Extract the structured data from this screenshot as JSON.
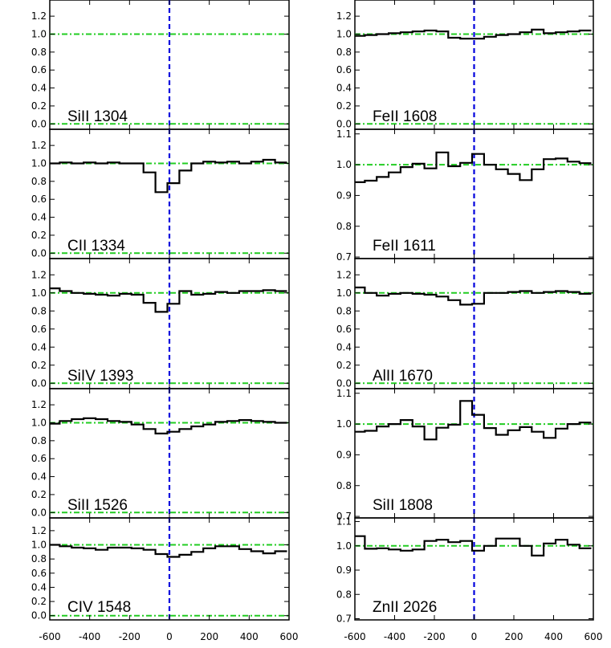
{
  "chart_data": {
    "type": "line",
    "title": "",
    "xlabel": "",
    "ylabel": "",
    "grid": false,
    "x_ticks": [
      -600,
      -400,
      -200,
      0,
      200,
      400,
      600
    ],
    "x_tick_labels_left": [
      "-600",
      "-400",
      "-200",
      "0",
      "200",
      "400",
      "600"
    ],
    "x_tick_labels_right": [
      "-600",
      "-400",
      "-200",
      "0",
      "200",
      "400",
      "600"
    ],
    "reference_lines": {
      "vertical_x": 0,
      "horizontal_y": [
        1.0,
        0.0
      ],
      "vertical_color": "#0000dd",
      "horizontal_color": "#22cc22"
    },
    "panels": [
      {
        "label": "SiII 1304",
        "column": "left",
        "row": 0,
        "xlim": [
          -600,
          600
        ],
        "ylim": [
          -0.06,
          1.38
        ],
        "yticks": [
          0.0,
          0.2,
          0.4,
          0.6,
          0.8,
          1.0,
          1.2
        ],
        "ytick_labels": [
          "0.0",
          "0.2",
          "0.4",
          "0.6",
          "0.8",
          "1.0",
          "1.2"
        ],
        "hlines": [
          1.0,
          0.0
        ],
        "x": [],
        "y": []
      },
      {
        "label": "CII 1334",
        "column": "left",
        "row": 1,
        "xlim": [
          -600,
          600
        ],
        "ylim": [
          -0.06,
          1.38
        ],
        "yticks": [
          0.0,
          0.2,
          0.4,
          0.6,
          0.8,
          1.0,
          1.2
        ],
        "ytick_labels": [
          "0.0",
          "0.2",
          "0.4",
          "0.6",
          "0.8",
          "1.0",
          "1.2"
        ],
        "hlines": [
          1.0,
          0.0
        ],
        "x": [
          -580,
          -520,
          -460,
          -400,
          -340,
          -280,
          -220,
          -160,
          -100,
          -40,
          20,
          80,
          140,
          200,
          260,
          320,
          380,
          440,
          500,
          560
        ],
        "y": [
          1.0,
          1.01,
          1.0,
          1.01,
          1.0,
          1.01,
          1.0,
          1.0,
          0.9,
          0.68,
          0.78,
          0.92,
          1.0,
          1.02,
          1.01,
          1.02,
          1.0,
          1.02,
          1.04,
          1.01
        ]
      },
      {
        "label": "SiIV 1393",
        "column": "left",
        "row": 2,
        "xlim": [
          -600,
          600
        ],
        "ylim": [
          -0.06,
          1.38
        ],
        "yticks": [
          0.0,
          0.2,
          0.4,
          0.6,
          0.8,
          1.0,
          1.2
        ],
        "ytick_labels": [
          "0.0",
          "0.2",
          "0.4",
          "0.6",
          "0.8",
          "1.0",
          "1.2"
        ],
        "hlines": [
          1.0,
          0.0
        ],
        "x": [
          -580,
          -520,
          -460,
          -400,
          -340,
          -280,
          -220,
          -160,
          -100,
          -40,
          20,
          80,
          140,
          200,
          260,
          320,
          380,
          440,
          500,
          560
        ],
        "y": [
          1.05,
          1.02,
          1.0,
          0.99,
          0.98,
          0.97,
          0.99,
          0.98,
          0.89,
          0.79,
          0.88,
          1.02,
          0.98,
          0.99,
          1.01,
          1.0,
          1.02,
          1.02,
          1.03,
          1.02
        ]
      },
      {
        "label": "SiII 1526",
        "column": "left",
        "row": 3,
        "xlim": [
          -600,
          600
        ],
        "ylim": [
          -0.06,
          1.38
        ],
        "yticks": [
          0.0,
          0.2,
          0.4,
          0.6,
          0.8,
          1.0,
          1.2
        ],
        "ytick_labels": [
          "0.0",
          "0.2",
          "0.4",
          "0.6",
          "0.8",
          "1.0",
          "1.2"
        ],
        "hlines": [
          1.0,
          0.0
        ],
        "x": [
          -580,
          -520,
          -460,
          -400,
          -340,
          -280,
          -220,
          -160,
          -100,
          -40,
          20,
          80,
          140,
          200,
          260,
          320,
          380,
          440,
          500,
          560
        ],
        "y": [
          0.99,
          1.02,
          1.04,
          1.05,
          1.04,
          1.02,
          1.01,
          0.98,
          0.93,
          0.88,
          0.9,
          0.93,
          0.96,
          0.98,
          1.01,
          1.02,
          1.03,
          1.02,
          1.01,
          1.0
        ]
      },
      {
        "label": "CIV 1548",
        "column": "left",
        "row": 4,
        "xlim": [
          -600,
          600
        ],
        "ylim": [
          -0.06,
          1.38
        ],
        "yticks": [
          0.0,
          0.2,
          0.4,
          0.6,
          0.8,
          1.0,
          1.2
        ],
        "ytick_labels": [
          "0.0",
          "0.2",
          "0.4",
          "0.6",
          "0.8",
          "1.0",
          "1.2"
        ],
        "hlines": [
          1.0,
          0.0
        ],
        "x": [
          -580,
          -520,
          -460,
          -400,
          -340,
          -280,
          -220,
          -160,
          -100,
          -40,
          20,
          80,
          140,
          200,
          260,
          320,
          380,
          440,
          500,
          560
        ],
        "y": [
          1.0,
          0.98,
          0.96,
          0.95,
          0.93,
          0.96,
          0.96,
          0.95,
          0.93,
          0.87,
          0.83,
          0.86,
          0.9,
          0.95,
          0.98,
          0.98,
          0.94,
          0.91,
          0.88,
          0.91
        ]
      },
      {
        "label": "FeII 1608",
        "column": "right",
        "row": 0,
        "xlim": [
          -600,
          600
        ],
        "ylim": [
          -0.06,
          1.38
        ],
        "yticks": [
          0.0,
          0.2,
          0.4,
          0.6,
          0.8,
          1.0,
          1.2
        ],
        "ytick_labels": [
          "0.0",
          "0.2",
          "0.4",
          "0.6",
          "0.8",
          "1.0",
          "1.2"
        ],
        "hlines": [
          1.0,
          0.0
        ],
        "x": [
          -580,
          -520,
          -460,
          -400,
          -340,
          -280,
          -220,
          -160,
          -100,
          -40,
          20,
          80,
          140,
          200,
          260,
          320,
          380,
          440,
          500,
          560
        ],
        "y": [
          0.98,
          0.99,
          1.0,
          1.01,
          1.02,
          1.03,
          1.04,
          1.03,
          0.96,
          0.95,
          0.95,
          0.97,
          0.99,
          1.0,
          1.02,
          1.05,
          1.01,
          1.02,
          1.03,
          1.04
        ]
      },
      {
        "label": "FeII 1611",
        "column": "right",
        "row": 1,
        "xlim": [
          -600,
          600
        ],
        "ylim": [
          0.695,
          1.115
        ],
        "yticks": [
          0.7,
          0.8,
          0.9,
          1.0,
          1.1
        ],
        "ytick_labels": [
          "0.7",
          "0.8",
          "0.9",
          "1.0",
          "1.1"
        ],
        "hlines": [
          1.0
        ],
        "x": [
          -580,
          -520,
          -460,
          -400,
          -340,
          -280,
          -220,
          -160,
          -100,
          -40,
          20,
          80,
          140,
          200,
          260,
          320,
          380,
          440,
          500,
          560
        ],
        "y": [
          0.943,
          0.948,
          0.96,
          0.975,
          0.992,
          1.003,
          0.988,
          1.04,
          0.995,
          1.006,
          1.035,
          1.0,
          0.985,
          0.97,
          0.95,
          0.985,
          1.018,
          1.02,
          1.01,
          1.005
        ]
      },
      {
        "label": "AlII 1670",
        "column": "right",
        "row": 2,
        "xlim": [
          -600,
          600
        ],
        "ylim": [
          -0.06,
          1.38
        ],
        "yticks": [
          0.0,
          0.2,
          0.4,
          0.6,
          0.8,
          1.0,
          1.2
        ],
        "ytick_labels": [
          "0.0",
          "0.2",
          "0.4",
          "0.6",
          "0.8",
          "1.0",
          "1.2"
        ],
        "hlines": [
          1.0,
          0.0
        ],
        "x": [
          -580,
          -520,
          -460,
          -400,
          -340,
          -280,
          -220,
          -160,
          -100,
          -40,
          20,
          80,
          140,
          200,
          260,
          320,
          380,
          440,
          500,
          560
        ],
        "y": [
          1.06,
          1.0,
          0.97,
          0.99,
          1.0,
          0.99,
          0.98,
          0.96,
          0.92,
          0.87,
          0.88,
          1.0,
          1.0,
          1.01,
          1.02,
          1.0,
          1.01,
          1.02,
          1.01,
          0.99
        ]
      },
      {
        "label": "SiII 1808",
        "column": "right",
        "row": 3,
        "xlim": [
          -600,
          600
        ],
        "ylim": [
          0.695,
          1.115
        ],
        "yticks": [
          0.7,
          0.8,
          0.9,
          1.0,
          1.1
        ],
        "ytick_labels": [
          "0.7",
          "0.8",
          "0.9",
          "1.0",
          "1.1"
        ],
        "hlines": [
          1.0
        ],
        "x": [
          -580,
          -520,
          -460,
          -400,
          -340,
          -280,
          -220,
          -160,
          -100,
          -40,
          20,
          80,
          140,
          200,
          260,
          320,
          380,
          440,
          500,
          560
        ],
        "y": [
          0.975,
          0.978,
          0.992,
          1.0,
          1.013,
          0.992,
          0.95,
          0.988,
          0.998,
          1.075,
          1.03,
          0.987,
          0.965,
          0.98,
          0.99,
          0.975,
          0.955,
          0.985,
          1.0,
          1.005
        ]
      },
      {
        "label": "ZnII 2026",
        "column": "right",
        "row": 4,
        "xlim": [
          -600,
          600
        ],
        "ylim": [
          0.695,
          1.115
        ],
        "yticks": [
          0.7,
          0.8,
          0.9,
          1.0,
          1.1
        ],
        "ytick_labels": [
          "0.7",
          "0.8",
          "0.9",
          "1.0",
          "1.1"
        ],
        "hlines": [
          1.0
        ],
        "x": [
          -580,
          -520,
          -460,
          -400,
          -340,
          -280,
          -220,
          -160,
          -100,
          -40,
          20,
          80,
          140,
          200,
          260,
          320,
          380,
          440,
          500,
          560
        ],
        "y": [
          1.04,
          0.988,
          0.99,
          0.985,
          0.98,
          0.985,
          1.02,
          1.025,
          1.015,
          1.02,
          0.98,
          1.0,
          1.03,
          1.03,
          1.0,
          0.96,
          1.01,
          1.025,
          1.005,
          0.99
        ]
      }
    ]
  }
}
